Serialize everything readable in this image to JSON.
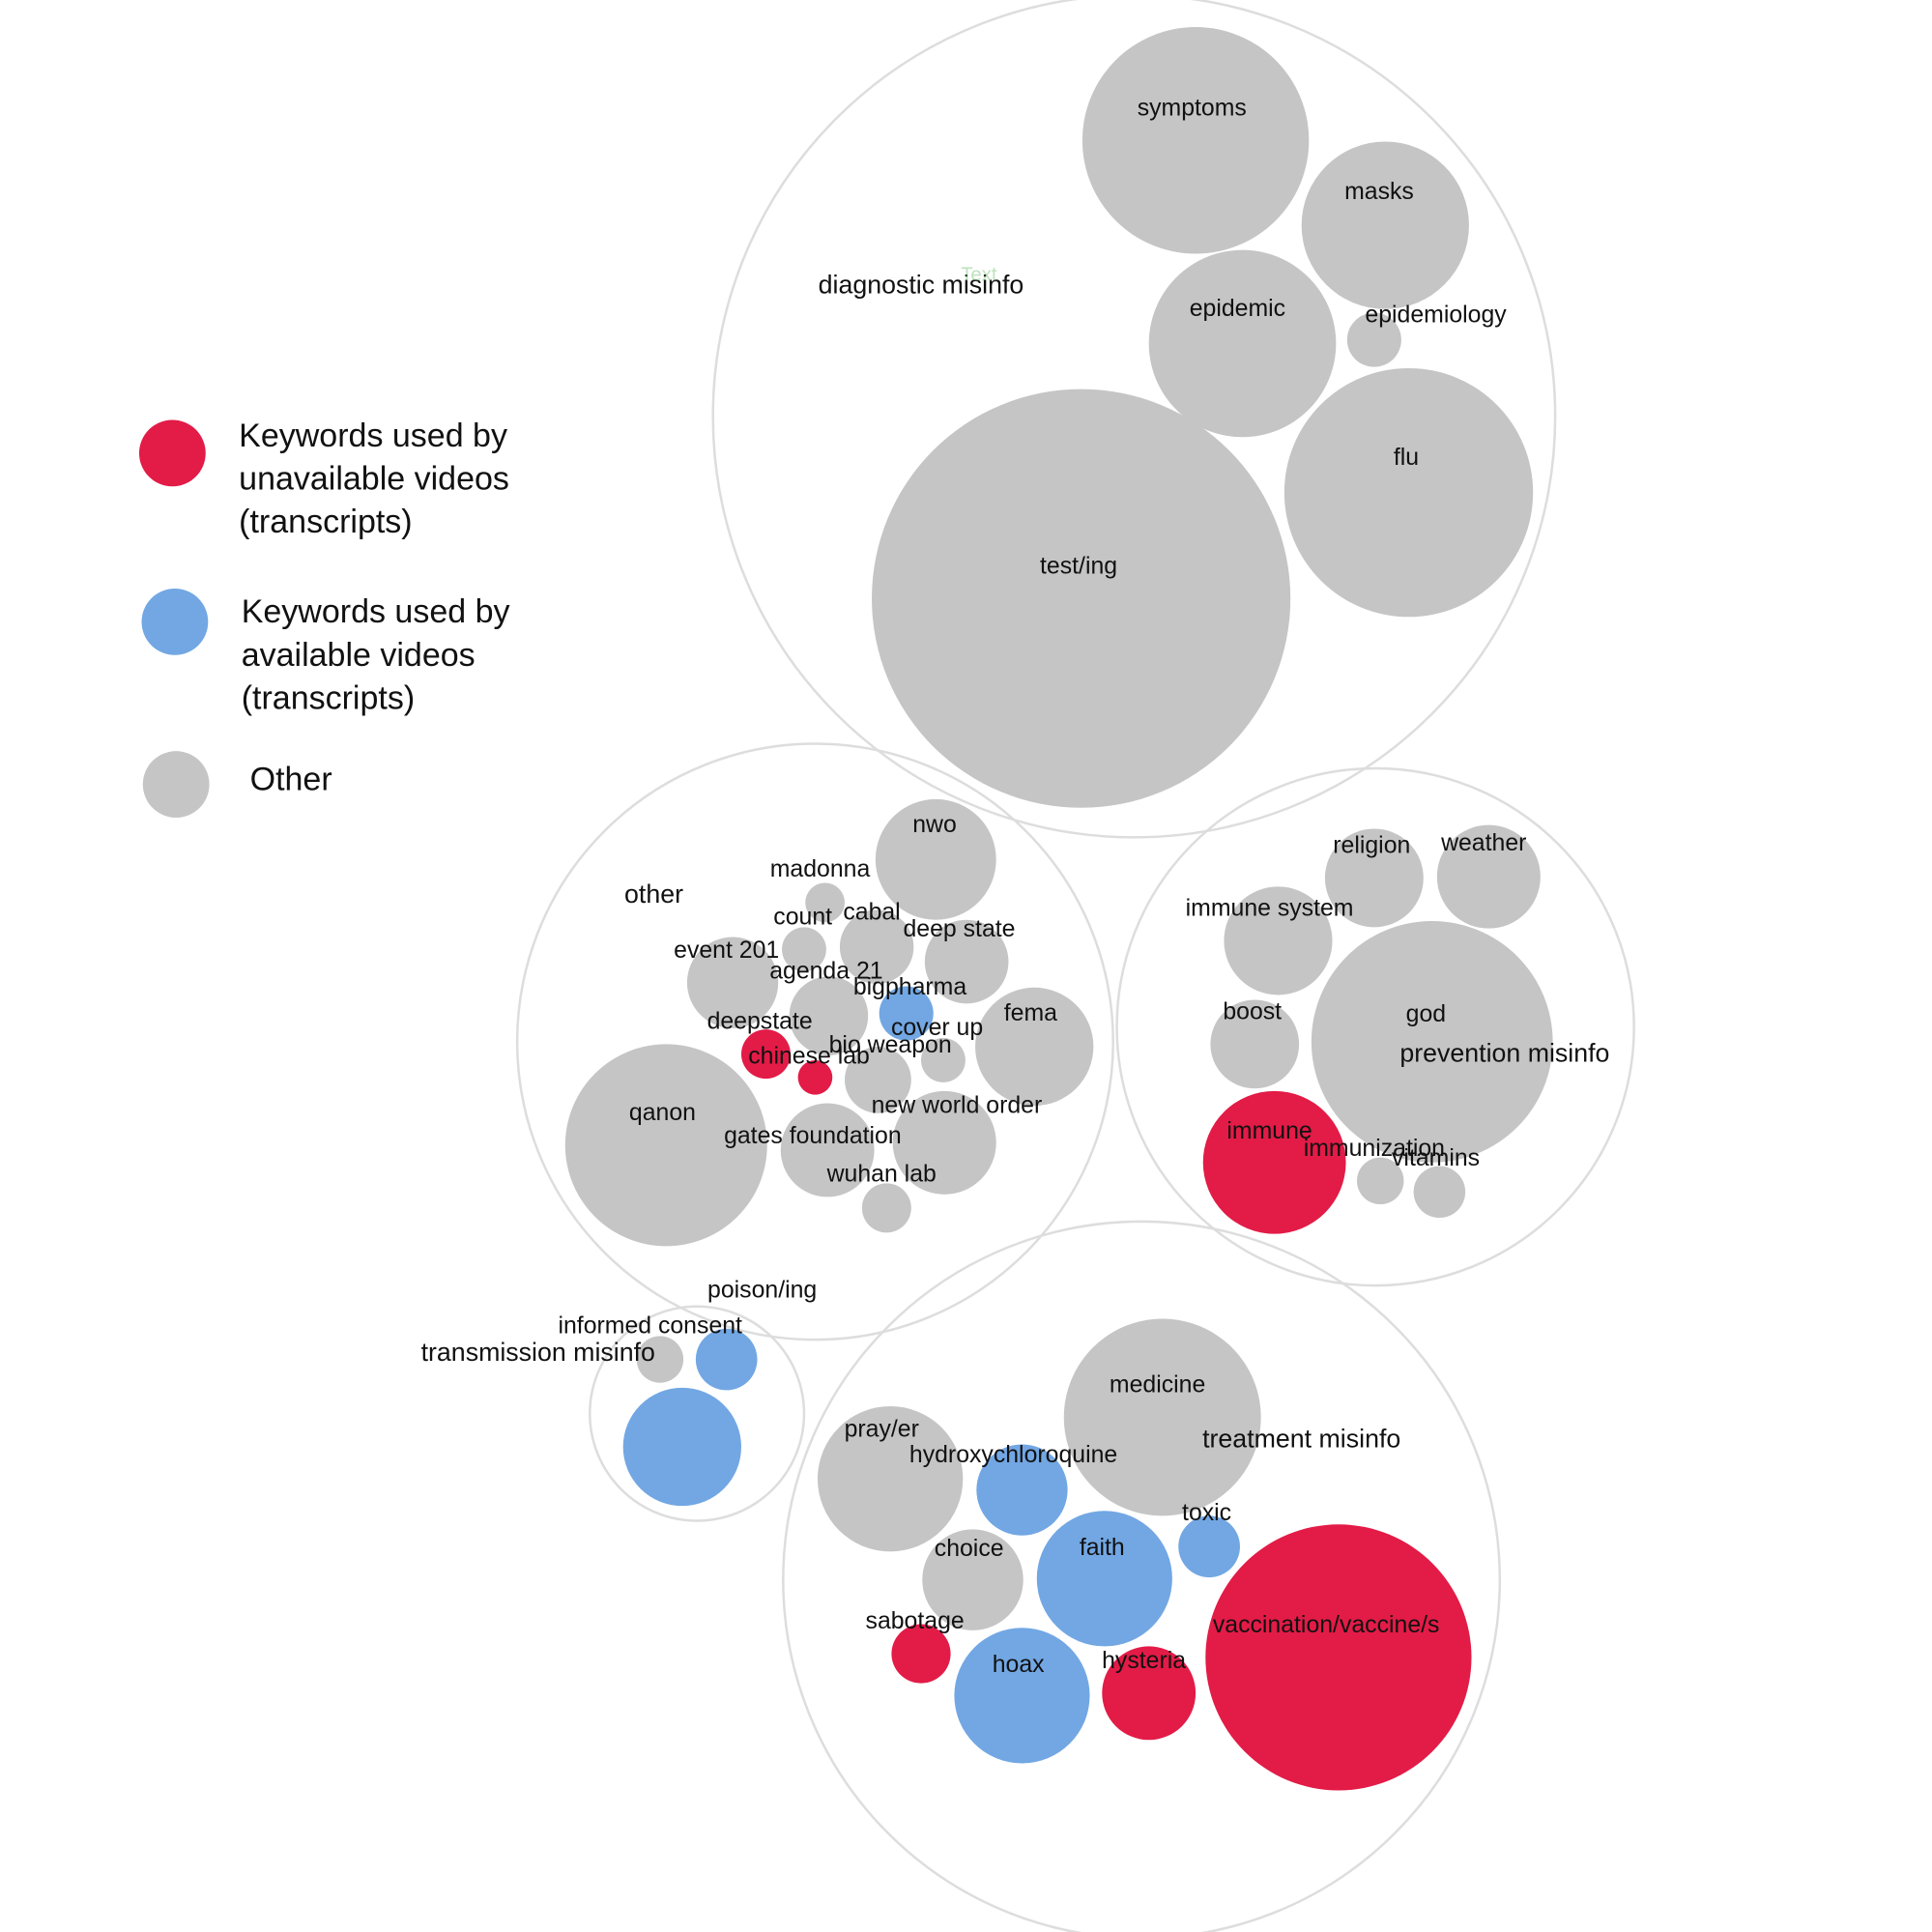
{
  "colors": {
    "unavailable": "#e31b47",
    "available": "#72a7e3",
    "other": "#c5c5c5",
    "group_stroke": "#dddddd"
  },
  "legend": [
    {
      "category": "unavailable",
      "lines": [
        "Keywords used by",
        "unavailable videos",
        "(transcripts)"
      ]
    },
    {
      "category": "available",
      "lines": [
        "Keywords used by",
        "available videos",
        "(transcripts)"
      ]
    },
    {
      "category": "other",
      "lines": [
        "Other"
      ]
    }
  ],
  "groups": [
    {
      "id": "diagnostic",
      "label": "diagnostic misinfo"
    },
    {
      "id": "other",
      "label": "other"
    },
    {
      "id": "prevention",
      "label": "prevention misinfo"
    },
    {
      "id": "transmission",
      "label": "transmission misinfo"
    },
    {
      "id": "treatment",
      "label": "treatment misinfo"
    }
  ],
  "keywords": [
    {
      "group": "diagnostic",
      "label": "symptoms",
      "category": "other"
    },
    {
      "group": "diagnostic",
      "label": "masks",
      "category": "other"
    },
    {
      "group": "diagnostic",
      "label": "epidemic",
      "category": "other"
    },
    {
      "group": "diagnostic",
      "label": "epidemiology",
      "category": "other"
    },
    {
      "group": "diagnostic",
      "label": "flu",
      "category": "other"
    },
    {
      "group": "diagnostic",
      "label": "test/ing",
      "category": "other"
    },
    {
      "group": "other",
      "label": "nwo",
      "category": "other"
    },
    {
      "group": "other",
      "label": "madonna",
      "category": "other"
    },
    {
      "group": "other",
      "label": "count",
      "category": "other"
    },
    {
      "group": "other",
      "label": "cabal",
      "category": "other"
    },
    {
      "group": "other",
      "label": "deep state",
      "category": "other"
    },
    {
      "group": "other",
      "label": "event 201",
      "category": "other"
    },
    {
      "group": "other",
      "label": "agenda 21",
      "category": "other"
    },
    {
      "group": "other",
      "label": "bigpharma",
      "category": "available"
    },
    {
      "group": "other",
      "label": "fema",
      "category": "other"
    },
    {
      "group": "other",
      "label": "deepstate",
      "category": "unavailable"
    },
    {
      "group": "other",
      "label": "cover up",
      "category": "other"
    },
    {
      "group": "other",
      "label": "chinese lab",
      "category": "unavailable"
    },
    {
      "group": "other",
      "label": "bio weapon",
      "category": "other"
    },
    {
      "group": "other",
      "label": "new world order",
      "category": "other"
    },
    {
      "group": "other",
      "label": "qanon",
      "category": "other"
    },
    {
      "group": "other",
      "label": "gates foundation",
      "category": "other"
    },
    {
      "group": "other",
      "label": "wuhan lab",
      "category": "other"
    },
    {
      "group": "other",
      "label": "",
      "category": "other"
    },
    {
      "group": "prevention",
      "label": "religion",
      "category": "other"
    },
    {
      "group": "prevention",
      "label": "weather",
      "category": "other"
    },
    {
      "group": "prevention",
      "label": "immune system",
      "category": "other"
    },
    {
      "group": "prevention",
      "label": "boost",
      "category": "other"
    },
    {
      "group": "prevention",
      "label": "god",
      "category": "other"
    },
    {
      "group": "prevention",
      "label": "immune",
      "category": "unavailable"
    },
    {
      "group": "prevention",
      "label": "immunization",
      "category": "other"
    },
    {
      "group": "prevention",
      "label": "vitamins",
      "category": "other"
    },
    {
      "group": "transmission",
      "label": "poison/ing",
      "category": "other"
    },
    {
      "group": "transmission",
      "label": "informed consent",
      "category": "available"
    },
    {
      "group": "transmission",
      "label": "",
      "category": "available"
    },
    {
      "group": "treatment",
      "label": "medicine",
      "category": "other"
    },
    {
      "group": "treatment",
      "label": "pray/er",
      "category": "other"
    },
    {
      "group": "treatment",
      "label": "hydroxychloroquine",
      "category": "available"
    },
    {
      "group": "treatment",
      "label": "toxic",
      "category": "available"
    },
    {
      "group": "treatment",
      "label": "choice",
      "category": "other"
    },
    {
      "group": "treatment",
      "label": "faith",
      "category": "available"
    },
    {
      "group": "treatment",
      "label": "sabotage",
      "category": "unavailable"
    },
    {
      "group": "treatment",
      "label": "hoax",
      "category": "available"
    },
    {
      "group": "treatment",
      "label": "hysteria",
      "category": "unavailable"
    },
    {
      "group": "treatment",
      "label": "vaccination/vaccine/s",
      "category": "unavailable"
    }
  ],
  "stray_text": "Text"
}
